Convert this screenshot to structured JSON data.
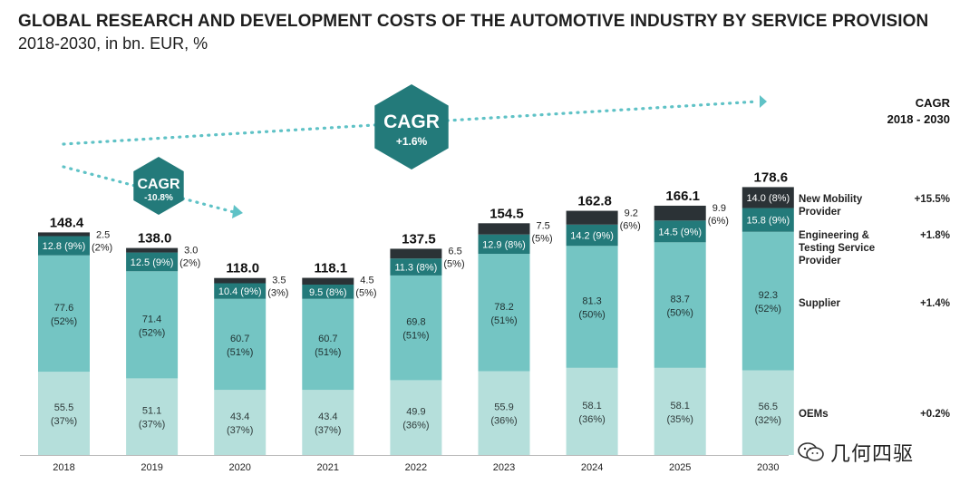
{
  "title": "GLOBAL RESEARCH AND DEVELOPMENT COSTS OF THE AUTOMOTIVE INDUSTRY BY SERVICE PROVISION",
  "subtitle": "2018-2030, in bn. EUR, %",
  "colors": {
    "oems": "#b5dfdb",
    "supplier": "#74c5c3",
    "engineering": "#237a7a",
    "mobility": "#2b3236",
    "hexagon": "#237a7a",
    "arrow": "#5fc2c6"
  },
  "cagr_long": {
    "label": "CAGR",
    "value": "+1.6%"
  },
  "cagr_short": {
    "label": "CAGR",
    "value": "-10.8%"
  },
  "legend_header": {
    "line1": "CAGR",
    "line2": "2018 - 2030"
  },
  "legend": [
    {
      "key": "mobility",
      "name_lines": [
        "New Mobility",
        "Provider"
      ],
      "cagr": "+15.5%"
    },
    {
      "key": "engineering",
      "name_lines": [
        "Engineering &",
        "Testing Service",
        "Provider"
      ],
      "cagr": "+1.8%"
    },
    {
      "key": "supplier",
      "name_lines": [
        "Supplier"
      ],
      "cagr": "+1.4%"
    },
    {
      "key": "oems",
      "name_lines": [
        "OEMs"
      ],
      "cagr": "+0.2%"
    }
  ],
  "watermark": "几何四驱",
  "chart_data": {
    "type": "bar",
    "stacked": true,
    "categories": [
      "2018",
      "2019",
      "2020",
      "2021",
      "2022",
      "2023",
      "2024",
      "2025",
      "2030"
    ],
    "totals": [
      148.4,
      138.0,
      118.0,
      118.1,
      137.5,
      154.5,
      162.8,
      166.1,
      178.6
    ],
    "totals_text": [
      "148.4",
      "138.0",
      "118.0",
      "118.1",
      "137.5",
      "154.5",
      "162.8",
      "166.1",
      "178.6"
    ],
    "series": [
      {
        "name": "OEMs",
        "key": "oems",
        "values": [
          55.5,
          51.1,
          43.4,
          43.4,
          49.9,
          55.9,
          58.1,
          58.1,
          56.5
        ],
        "shares": [
          "37%",
          "37%",
          "37%",
          "37%",
          "36%",
          "36%",
          "36%",
          "35%",
          "32%"
        ]
      },
      {
        "name": "Supplier",
        "key": "supplier",
        "values": [
          77.6,
          71.4,
          60.7,
          60.7,
          69.8,
          78.2,
          81.3,
          83.7,
          92.3
        ],
        "shares": [
          "52%",
          "52%",
          "51%",
          "51%",
          "51%",
          "51%",
          "50%",
          "50%",
          "52%"
        ]
      },
      {
        "name": "Engineering & Testing Service Provider",
        "key": "engineering",
        "values": [
          12.8,
          12.5,
          10.4,
          9.5,
          11.3,
          12.9,
          14.2,
          14.5,
          15.8
        ],
        "shares": [
          "9%",
          "9%",
          "9%",
          "8%",
          "8%",
          "8%",
          "9%",
          "9%",
          "9%"
        ]
      },
      {
        "name": "New Mobility Provider",
        "key": "mobility",
        "values": [
          2.5,
          3.0,
          3.5,
          4.5,
          6.5,
          7.5,
          9.2,
          9.9,
          14.0
        ],
        "shares": [
          "2%",
          "2%",
          "3%",
          "5%",
          "5%",
          "5%",
          "6%",
          "6%",
          "8%"
        ]
      }
    ],
    "value_text": {
      "oems": [
        "55.5",
        "51.1",
        "43.4",
        "43.4",
        "49.9",
        "55.9",
        "58.1",
        "58.1",
        "56.5"
      ],
      "supplier": [
        "77.6",
        "71.4",
        "60.7",
        "60.7",
        "69.8",
        "78.2",
        "81.3",
        "83.7",
        "92.3"
      ],
      "engineering": [
        "12.8",
        "12.5",
        "10.4",
        "9.5",
        "11.3",
        "12.9",
        "14.2",
        "14.5",
        "15.8"
      ],
      "mobility": [
        "2.5",
        "3.0",
        "3.5",
        "4.5",
        "6.5",
        "7.5",
        "9.2",
        "9.9",
        "14.0"
      ]
    },
    "ylim": [
      0,
      180
    ],
    "legend_position": "right"
  }
}
